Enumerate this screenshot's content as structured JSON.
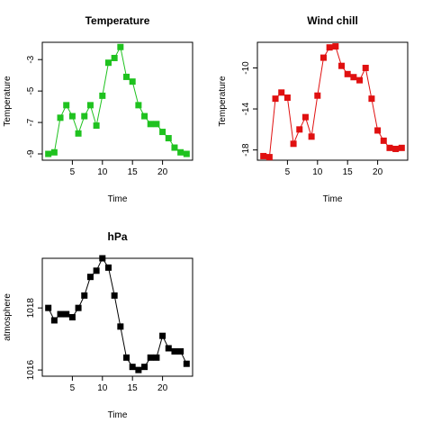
{
  "chart_data": [
    {
      "type": "line",
      "title": "Temperature",
      "xlabel": "Time",
      "ylabel": "Temperature",
      "xlim": [
        0,
        25
      ],
      "ylim": [
        -9.4,
        -1.9
      ],
      "xticks": [
        5,
        10,
        15,
        20
      ],
      "yticks": [
        -9,
        -7,
        -5,
        -3
      ],
      "grid": false,
      "color": "#1fc21f",
      "x": [
        1,
        2,
        3,
        4,
        5,
        6,
        7,
        8,
        9,
        10,
        11,
        12,
        13,
        14,
        15,
        16,
        17,
        18,
        19,
        20,
        21,
        22,
        23,
        24
      ],
      "values": [
        -9.0,
        -8.9,
        -6.7,
        -5.9,
        -6.6,
        -7.7,
        -6.6,
        -5.9,
        -7.2,
        -5.3,
        -3.2,
        -2.9,
        -2.2,
        -4.1,
        -4.4,
        -5.9,
        -6.6,
        -7.1,
        -7.1,
        -7.6,
        -8.0,
        -8.6,
        -8.9,
        -9.0
      ]
    },
    {
      "type": "line",
      "title": "Wind chill",
      "xlabel": "Time",
      "ylabel": "Temperature",
      "xlim": [
        0,
        25
      ],
      "ylim": [
        -19.0,
        -7.5
      ],
      "xticks": [
        5,
        10,
        15,
        20
      ],
      "yticks": [
        -18,
        -14,
        -10
      ],
      "grid": false,
      "color": "#e01010",
      "x": [
        1,
        2,
        3,
        4,
        5,
        6,
        7,
        8,
        9,
        10,
        11,
        12,
        13,
        14,
        15,
        16,
        17,
        18,
        19,
        20,
        21,
        22,
        23,
        24
      ],
      "values": [
        -18.6,
        -18.7,
        -13.0,
        -12.4,
        -12.9,
        -17.4,
        -16.0,
        -14.8,
        -16.7,
        -12.7,
        -9.0,
        -8.0,
        -7.9,
        -9.8,
        -10.6,
        -10.9,
        -11.2,
        -10.0,
        -13.0,
        -16.1,
        -17.1,
        -17.8,
        -17.9,
        -17.8
      ]
    },
    {
      "type": "line",
      "title": "hPa",
      "xlabel": "Time",
      "ylabel": "atmosphere",
      "xlim": [
        0,
        25
      ],
      "ylim": [
        1015.8,
        1019.6
      ],
      "xticks": [
        5,
        10,
        15,
        20
      ],
      "yticks": [
        1016,
        1018
      ],
      "grid": false,
      "color": "#000000",
      "x": [
        1,
        2,
        3,
        4,
        5,
        6,
        7,
        8,
        9,
        10,
        11,
        12,
        13,
        14,
        15,
        16,
        17,
        18,
        19,
        20,
        21,
        22,
        23,
        24
      ],
      "values": [
        1018.0,
        1017.6,
        1017.8,
        1017.8,
        1017.7,
        1018.0,
        1018.4,
        1019.0,
        1019.2,
        1019.6,
        1019.3,
        1018.4,
        1017.4,
        1016.4,
        1016.1,
        1016.0,
        1016.1,
        1016.4,
        1016.4,
        1017.1,
        1016.7,
        1016.6,
        1016.6,
        1016.2
      ]
    }
  ]
}
